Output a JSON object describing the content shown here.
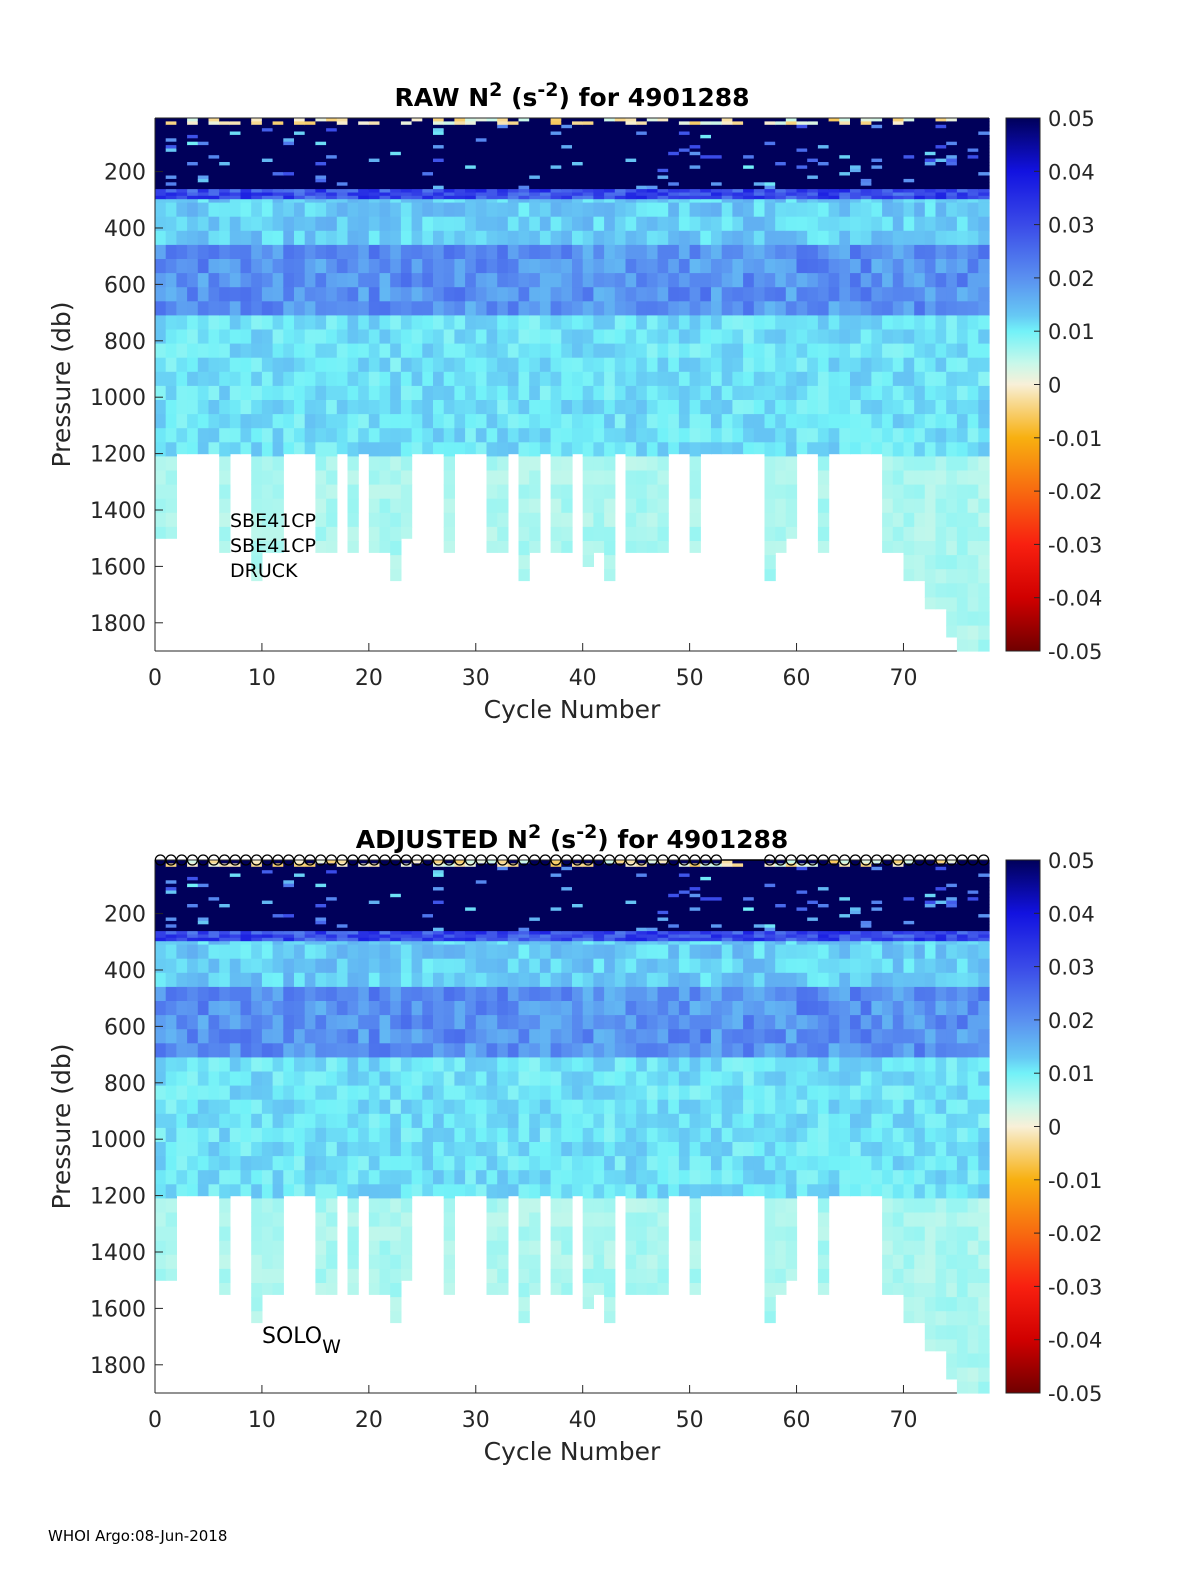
{
  "footer": "WHOI Argo:08-Jun-2018",
  "colormap": {
    "stops": [
      [
        0.05,
        "#00005a"
      ],
      [
        0.04,
        "#1212e0"
      ],
      [
        0.03,
        "#3a4ae8"
      ],
      [
        0.02,
        "#5a90f0"
      ],
      [
        0.013,
        "#66c8f4"
      ],
      [
        0.01,
        "#72f2f8"
      ],
      [
        0.004,
        "#c8f8ea"
      ],
      [
        0.0,
        "#f8f0d8"
      ],
      [
        -0.003,
        "#f8dc98"
      ],
      [
        -0.01,
        "#f8b010"
      ],
      [
        -0.02,
        "#f86a10"
      ],
      [
        -0.03,
        "#f82010"
      ],
      [
        -0.04,
        "#d00000"
      ],
      [
        -0.05,
        "#700000"
      ]
    ]
  },
  "chart_data": [
    {
      "type": "heatmap",
      "title_main": "RAW N",
      "title_sup1": "2",
      "title_mid": " (s",
      "title_sup2": "-2",
      "title_end": ") for 4901288",
      "xlabel": "Cycle Number",
      "ylabel": "Pressure (db)",
      "xlim": [
        0,
        78
      ],
      "ylim": [
        10,
        1900
      ],
      "y_reversed": true,
      "xticks": [
        "0",
        "10",
        "20",
        "30",
        "40",
        "50",
        "60",
        "70"
      ],
      "yticks": [
        "200",
        "400",
        "600",
        "800",
        "1000",
        "1200",
        "1400",
        "1600",
        "1800"
      ],
      "colorbar": {
        "range": [
          -0.05,
          0.05
        ],
        "ticks": [
          "0.05",
          "0.04",
          "0.03",
          "0.02",
          "0.01",
          "0",
          "-0.01",
          "-0.02",
          "-0.03",
          "-0.04",
          "-0.05"
        ]
      },
      "annotation": [
        "SBE41CP",
        "SBE41CP",
        "DRUCK"
      ],
      "markers": false
    },
    {
      "type": "heatmap",
      "title_main": "ADJUSTED N",
      "title_sup1": "2",
      "title_mid": " (s",
      "title_sup2": "-2",
      "title_end": ") for 4901288",
      "xlabel": "Cycle Number",
      "ylabel": "Pressure (db)",
      "xlim": [
        0,
        78
      ],
      "ylim": [
        10,
        1900
      ],
      "y_reversed": true,
      "xticks": [
        "0",
        "10",
        "20",
        "30",
        "40",
        "50",
        "60",
        "70"
      ],
      "yticks": [
        "200",
        "400",
        "600",
        "800",
        "1000",
        "1200",
        "1400",
        "1600",
        "1800"
      ],
      "colorbar": {
        "range": [
          -0.05,
          0.05
        ],
        "ticks": [
          "0.05",
          "0.04",
          "0.03",
          "0.02",
          "0.01",
          "0",
          "-0.01",
          "-0.02",
          "-0.03",
          "-0.04",
          "-0.05"
        ]
      },
      "annotation_main": "SOLO",
      "annotation_sub": "W",
      "markers": true,
      "marker_cycles_missing": [
        54,
        55,
        56,
        57
      ]
    }
  ],
  "profile_depth_db": [
    1500,
    1500,
    1200,
    1200,
    1200,
    1200,
    1550,
    1200,
    1200,
    1650,
    1550,
    1550,
    1200,
    1200,
    1200,
    1550,
    1550,
    1200,
    1550,
    1200,
    1550,
    1550,
    1650,
    1500,
    1200,
    1200,
    1200,
    1550,
    1200,
    1200,
    1200,
    1550,
    1550,
    1200,
    1650,
    1550,
    1200,
    1550,
    1550,
    1200,
    1600,
    1550,
    1650,
    1200,
    1550,
    1550,
    1550,
    1550,
    1200,
    1200,
    1550,
    1200,
    1200,
    1200,
    1200,
    1200,
    1200,
    1650,
    1550,
    1500,
    1200,
    1200,
    1550,
    1200,
    1200,
    1200,
    1200,
    1200,
    1550,
    1550,
    1650,
    1650,
    1750,
    1750,
    1850,
    1900,
    1900,
    1900
  ],
  "mean_profile": [
    {
      "p_top": 10,
      "p_bot": 30,
      "n2": 0.002
    },
    {
      "p_top": 30,
      "p_bot": 260,
      "n2": 0.055
    },
    {
      "p_top": 260,
      "p_bot": 300,
      "n2": 0.03
    },
    {
      "p_top": 300,
      "p_bot": 450,
      "n2": 0.013
    },
    {
      "p_top": 450,
      "p_bot": 700,
      "n2": 0.02
    },
    {
      "p_top": 700,
      "p_bot": 1200,
      "n2": 0.011
    },
    {
      "p_top": 1200,
      "p_bot": 1900,
      "n2": 0.006
    }
  ]
}
